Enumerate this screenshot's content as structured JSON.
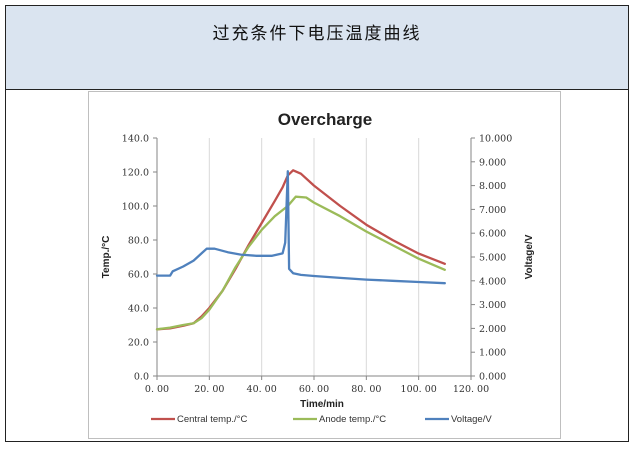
{
  "header": {
    "title": "过充条件下电压温度曲线"
  },
  "chart_data": {
    "type": "line",
    "title": "Overcharge",
    "xlabel": "Time/min",
    "ylabel_left": "Temp./°C",
    "ylabel_right": "Voltage/V",
    "xlim": [
      0,
      120
    ],
    "ylim_left": [
      0,
      140
    ],
    "ylim_right": [
      0,
      10
    ],
    "x_ticks": [
      "0. 00",
      "20. 00",
      "40. 00",
      "60. 00",
      "80. 00",
      "100. 00",
      "120. 00"
    ],
    "x_tick_values": [
      0,
      20,
      40,
      60,
      80,
      100,
      120
    ],
    "y_left_ticks": [
      "0.0",
      "20.0",
      "40.0",
      "60.0",
      "80.0",
      "100.0",
      "120.0",
      "140.0"
    ],
    "y_left_tick_values": [
      0,
      20,
      40,
      60,
      80,
      100,
      120,
      140
    ],
    "y_right_ticks": [
      "0.000",
      "1.000",
      "2.000",
      "3.000",
      "4.000",
      "5.000",
      "6.000",
      "7.000",
      "8.000",
      "9.000",
      "10.000"
    ],
    "y_right_tick_values": [
      0,
      1,
      2,
      3,
      4,
      5,
      6,
      7,
      8,
      9,
      10
    ],
    "grid": "vertical",
    "legend_position": "bottom",
    "series": [
      {
        "name": "Central temp./°C",
        "axis": "left",
        "color": "#c0504d",
        "x": [
          0,
          5,
          10,
          14,
          17,
          20,
          25,
          30,
          35,
          40,
          45,
          48,
          50,
          52,
          55,
          60,
          70,
          80,
          90,
          100,
          110
        ],
        "y": [
          27.5,
          28,
          29.5,
          31,
          35,
          40,
          50,
          63,
          77,
          90,
          103,
          111,
          118,
          121,
          119,
          112,
          100,
          89,
          80,
          72,
          66
        ]
      },
      {
        "name": "Anode temp./°C",
        "axis": "left",
        "color": "#9bbb59",
        "x": [
          0,
          5,
          10,
          14,
          17,
          20,
          25,
          30,
          35,
          40,
          45,
          50,
          53,
          57,
          60,
          70,
          80,
          90,
          100,
          110
        ],
        "y": [
          27.5,
          28.5,
          30,
          31,
          34,
          39,
          50,
          64,
          76,
          86,
          94,
          100,
          105.5,
          105,
          102,
          94,
          85,
          77,
          69,
          62.5
        ]
      },
      {
        "name": "Voltage/V",
        "axis": "right",
        "color": "#4f81bd",
        "x": [
          0,
          5,
          6,
          10,
          14,
          17,
          19,
          22,
          27,
          32,
          38,
          44,
          48,
          49,
          50,
          50.5,
          52,
          55,
          60,
          70,
          80,
          90,
          100,
          110
        ],
        "y": [
          4.22,
          4.22,
          4.4,
          4.6,
          4.85,
          5.15,
          5.35,
          5.35,
          5.2,
          5.1,
          5.05,
          5.05,
          5.15,
          5.6,
          8.6,
          4.5,
          4.32,
          4.25,
          4.2,
          4.12,
          4.05,
          4.0,
          3.95,
          3.9
        ]
      }
    ]
  }
}
